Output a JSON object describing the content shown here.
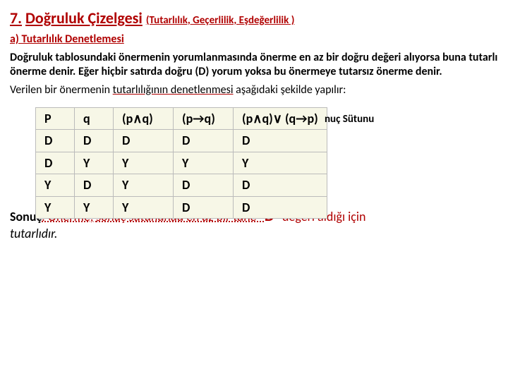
{
  "heading": {
    "num": "7.",
    "title": "Doğruluk Çizelgesi",
    "sub": "(Tutarlılık, Geçerlilik, Eşdeğerlilik )"
  },
  "section": "a) Tutarlılık Denetlemesi",
  "p1": "Doğruluk tablosundaki önermenin yorumlanmasında önerme en az bir doğru değeri alıyorsa buna tutarlı önerme denir. Eğer hiçbir satırda doğru (D) yorum yoksa bu önermeye tutarsız önerme denir.",
  "p2_pre": "Verilen bir önermenin ",
  "p2_u": "tutarlılığının denetlenmesi",
  "p2_post": " aşağıdaki şekilde yapılır:",
  "side_label": "nuç Sütunu",
  "table": {
    "headers": [
      "P",
      "q",
      "(p∧q)",
      "(p→q)",
      "(p∧q)∨ (q→p)"
    ],
    "rows": [
      [
        "D",
        "D",
        "D",
        "D",
        "D"
      ],
      [
        "D",
        "Y",
        "Y",
        "Y",
        "Y"
      ],
      [
        "Y",
        "D",
        "Y",
        "D",
        "D"
      ],
      [
        "Y",
        "Y",
        "Y",
        "D",
        "D"
      ]
    ]
  },
  "sonuc": {
    "label": "Sonuç",
    "r1a": ": Önerme, ",
    "r1b": "sonuç sütununda en az bir tane \"",
    "r1c": "D",
    "r1d": "\" değeri aldığı için",
    "r2": "tutarlıdır."
  }
}
